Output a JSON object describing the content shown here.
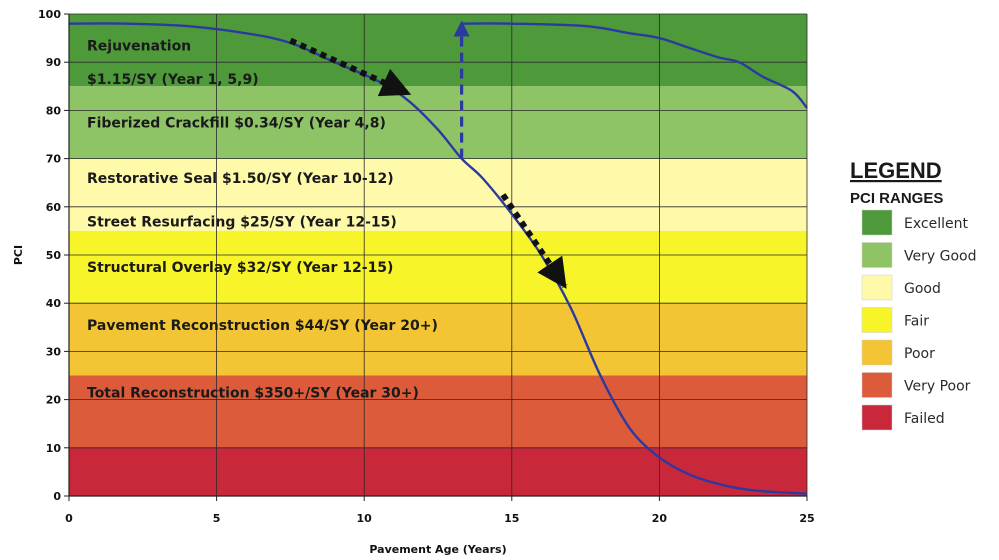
{
  "chart_data": {
    "type": "line",
    "xlabel": "Pavement Age (Years)",
    "ylabel": "PCI",
    "xlim": [
      0,
      25
    ],
    "ylim": [
      0,
      100
    ],
    "xticks": [
      0,
      5,
      10,
      15,
      20,
      25
    ],
    "yticks": [
      0,
      10,
      20,
      30,
      40,
      50,
      60,
      70,
      80,
      90,
      100
    ],
    "grid": true,
    "legend": {
      "title": "LEGEND",
      "subtitle": "PCI RANGES",
      "placement": "right",
      "items": [
        {
          "label": "Excellent",
          "color": "#4e9a3a"
        },
        {
          "label": "Very Good",
          "color": "#8ec466"
        },
        {
          "label": "Good",
          "color": "#fffaaa"
        },
        {
          "label": "Fair",
          "color": "#f7f52a"
        },
        {
          "label": "Poor",
          "color": "#f3c433"
        },
        {
          "label": "Very Poor",
          "color": "#dc5b3b"
        },
        {
          "label": "Failed",
          "color": "#c8283a"
        }
      ]
    },
    "bands": [
      {
        "from": 85,
        "to": 100,
        "color": "#4e9a3a"
      },
      {
        "from": 70,
        "to": 85,
        "color": "#8ec466"
      },
      {
        "from": 55,
        "to": 70,
        "color": "#fffaaa"
      },
      {
        "from": 40,
        "to": 55,
        "color": "#f7f52a"
      },
      {
        "from": 25,
        "to": 40,
        "color": "#f3c433"
      },
      {
        "from": 10,
        "to": 25,
        "color": "#dc5b3b"
      },
      {
        "from": 0,
        "to": 10,
        "color": "#c8283a"
      }
    ],
    "annotations": [
      {
        "text": "Rejuvenation",
        "y": 93.5
      },
      {
        "text": "$1.15/SY (Year 1, 5,9)",
        "y": 86.5
      },
      {
        "text": "Fiberized Crackfill $0.34/SY (Year 4,8)",
        "y": 77.5
      },
      {
        "text": "Restorative Seal $1.50/SY (Year 10-12)",
        "y": 66
      },
      {
        "text": "Street Resurfacing $25/SY (Year 12-15)",
        "y": 57
      },
      {
        "text": "Structural Overlay $32/SY (Year 12-15)",
        "y": 47.5
      },
      {
        "text": "Pavement Reconstruction $44/SY (Year 20+)",
        "y": 35.5
      },
      {
        "text": "Total Reconstruction $350+/SY (Year 30+)",
        "y": 21.5
      }
    ],
    "series": [
      {
        "color": "#2b3aa0",
        "points": [
          [
            0,
            98
          ],
          [
            2,
            98
          ],
          [
            4,
            97.5
          ],
          [
            6,
            96
          ],
          [
            7.5,
            94
          ],
          [
            9,
            90
          ],
          [
            10.5,
            86
          ],
          [
            11.5,
            82
          ],
          [
            12.5,
            76
          ],
          [
            13.3,
            70
          ],
          [
            14,
            66
          ],
          [
            15,
            58.5
          ],
          [
            16,
            50
          ],
          [
            17,
            39
          ],
          [
            18,
            25
          ],
          [
            19,
            14
          ],
          [
            20,
            8
          ],
          [
            21,
            4.5
          ],
          [
            22,
            2.5
          ],
          [
            23,
            1.3
          ],
          [
            24,
            0.8
          ],
          [
            25,
            0.5
          ]
        ]
      },
      {
        "color": "#2b3aa0",
        "points": [
          [
            13.3,
            98
          ],
          [
            15,
            98
          ],
          [
            17.5,
            97.5
          ],
          [
            19,
            96
          ],
          [
            20,
            95
          ],
          [
            21,
            93
          ],
          [
            22,
            91
          ],
          [
            22.7,
            90
          ],
          [
            23.5,
            87
          ],
          [
            24.5,
            84
          ],
          [
            25,
            80.5
          ]
        ]
      }
    ],
    "arrows": [
      {
        "style": "dotted",
        "color": "#111111",
        "from": [
          7.5,
          94.5
        ],
        "to": [
          11.5,
          83.5
        ]
      },
      {
        "style": "dotted",
        "color": "#111111",
        "from": [
          14.7,
          62.5
        ],
        "to": [
          16.8,
          43.5
        ]
      },
      {
        "style": "dashed",
        "color": "#2b3aa0",
        "from": [
          13.3,
          70
        ],
        "to": [
          13.3,
          98
        ]
      }
    ]
  }
}
